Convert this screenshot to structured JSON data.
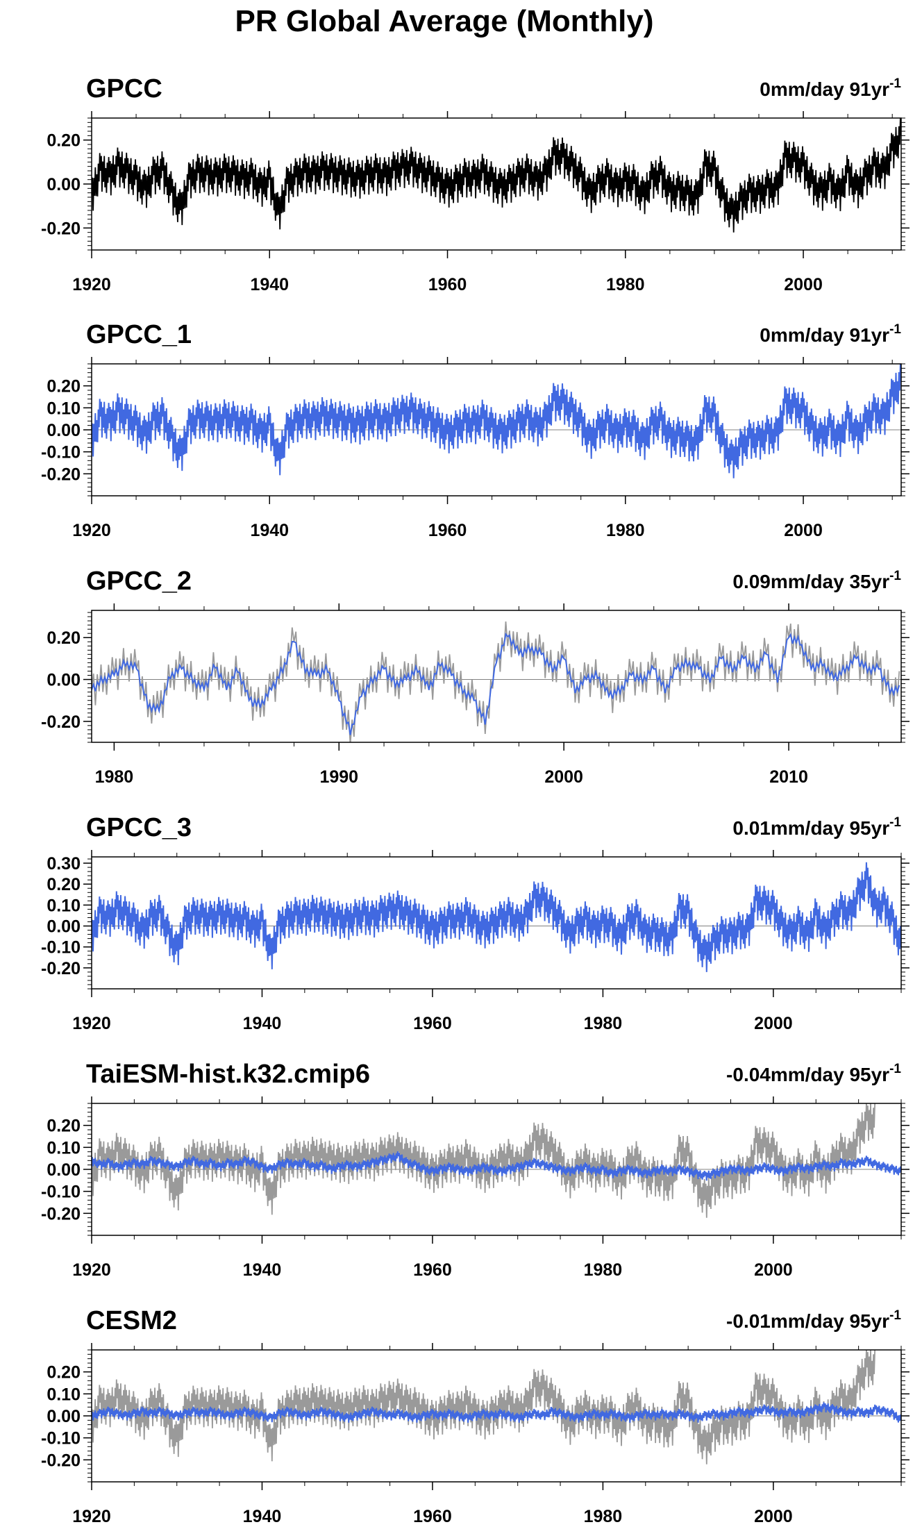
{
  "page": {
    "title": "PR Global Average (Monthly)"
  },
  "colors": {
    "observed": "#000000",
    "model": "#4169E1",
    "reference": "#9a9a9a",
    "zero_line": "#808080"
  },
  "chart_data": [
    {
      "type": "line",
      "title": "GPCC",
      "annotation": "0mm/day 91yr",
      "annotation_superscript": "-1",
      "xlim": [
        1920,
        2011
      ],
      "xticks": [
        1920,
        1940,
        1960,
        1980,
        2000
      ],
      "ylim": [
        -0.3,
        0.3
      ],
      "yticks": [
        -0.2,
        0.0,
        0.2
      ],
      "ytick_labels": [
        "-0.20",
        "0.00",
        "0.20"
      ],
      "show_zero_line": false,
      "series": [
        {
          "role": "observed",
          "color": "#000000",
          "step_years": 1,
          "x_start": 1920,
          "values": [
            -0.05,
            0.06,
            0.03,
            0.08,
            0.05,
            0.02,
            -0.03,
            0.04,
            0.06,
            -0.04,
            -0.12,
            0.02,
            0.05,
            0.04,
            0.03,
            0.05,
            0.04,
            0.02,
            0.03,
            -0.02,
            0.02,
            -0.14,
            0.0,
            0.03,
            0.05,
            0.04,
            0.06,
            0.05,
            0.04,
            0.03,
            0.02,
            0.04,
            0.05,
            0.03,
            0.06,
            0.07,
            0.08,
            0.05,
            0.04,
            0.01,
            -0.02,
            0.0,
            0.03,
            0.02,
            0.05,
            0.01,
            -0.02,
            0.0,
            0.03,
            0.05,
            0.01,
            0.04,
            0.13,
            0.12,
            0.08,
            0.03,
            -0.05,
            0.0,
            0.03,
            -0.02,
            0.01,
            0.0,
            -0.06,
            0.02,
            0.04,
            -0.04,
            -0.03,
            -0.05,
            -0.07,
            0.08,
            0.06,
            -0.07,
            -0.14,
            -0.08,
            -0.04,
            -0.05,
            -0.02,
            -0.03,
            0.12,
            0.1,
            0.08,
            0.0,
            -0.04,
            0.01,
            -0.05,
            0.05,
            -0.03,
            0.03,
            0.08,
            0.05,
            0.15,
            0.22
          ]
        }
      ]
    },
    {
      "type": "line",
      "title": "GPCC_1",
      "annotation": "0mm/day 91yr",
      "annotation_superscript": "-1",
      "xlim": [
        1920,
        2011
      ],
      "xticks": [
        1920,
        1940,
        1960,
        1980,
        2000
      ],
      "ylim": [
        -0.3,
        0.3
      ],
      "yticks": [
        -0.2,
        -0.1,
        0.0,
        0.1,
        0.2
      ],
      "ytick_labels": [
        "-0.20",
        "-0.10",
        "0.00",
        "0.10",
        "0.20"
      ],
      "show_zero_line": true,
      "series": [
        {
          "role": "model",
          "color": "#4169E1",
          "step_years": 1,
          "x_start": 1920,
          "values": [
            -0.05,
            0.06,
            0.03,
            0.08,
            0.05,
            0.02,
            -0.03,
            0.04,
            0.06,
            -0.04,
            -0.12,
            0.02,
            0.05,
            0.04,
            0.03,
            0.05,
            0.04,
            0.02,
            0.03,
            -0.02,
            0.02,
            -0.14,
            0.0,
            0.03,
            0.05,
            0.04,
            0.06,
            0.05,
            0.04,
            0.03,
            0.02,
            0.04,
            0.05,
            0.03,
            0.06,
            0.07,
            0.08,
            0.05,
            0.04,
            0.01,
            -0.02,
            0.0,
            0.03,
            0.02,
            0.05,
            0.01,
            -0.02,
            0.0,
            0.03,
            0.05,
            0.01,
            0.04,
            0.13,
            0.12,
            0.08,
            0.03,
            -0.05,
            0.0,
            0.03,
            -0.02,
            0.01,
            0.0,
            -0.06,
            0.02,
            0.04,
            -0.04,
            -0.03,
            -0.05,
            -0.07,
            0.08,
            0.06,
            -0.07,
            -0.14,
            -0.08,
            -0.04,
            -0.05,
            -0.02,
            -0.03,
            0.12,
            0.1,
            0.08,
            0.0,
            -0.04,
            0.01,
            -0.05,
            0.05,
            -0.03,
            0.03,
            0.08,
            0.05,
            0.15,
            0.22
          ]
        }
      ]
    },
    {
      "type": "line",
      "title": "GPCC_2",
      "annotation": "0.09mm/day 35yr",
      "annotation_superscript": "-1",
      "xlim": [
        1979,
        2015
      ],
      "xticks": [
        1980,
        1990,
        2000,
        2010
      ],
      "ylim": [
        -0.3,
        0.33
      ],
      "yticks": [
        -0.2,
        0.0,
        0.2
      ],
      "ytick_labels": [
        "-0.20",
        "0.00",
        "0.20"
      ],
      "show_zero_line": true,
      "series": [
        {
          "role": "reference",
          "color": "#9a9a9a",
          "step_years": 0.5,
          "x_start": 1979,
          "values": [
            -0.05,
            0.0,
            0.02,
            0.08,
            0.05,
            -0.12,
            -0.15,
            0.02,
            0.05,
            0.0,
            -0.05,
            0.07,
            -0.05,
            0.05,
            -0.1,
            -0.12,
            -0.05,
            0.05,
            0.18,
            0.05,
            0.02,
            0.05,
            -0.1,
            -0.25,
            -0.08,
            0.0,
            0.05,
            -0.02,
            0.0,
            0.05,
            -0.05,
            0.08,
            0.02,
            -0.05,
            -0.1,
            -0.2,
            0.08,
            0.22,
            0.12,
            0.15,
            0.12,
            0.05,
            0.1,
            -0.05,
            0.0,
            0.02,
            -0.08,
            -0.05,
            0.02,
            0.0,
            0.05,
            -0.05,
            0.05,
            0.08,
            0.05,
            0.0,
            0.1,
            0.05,
            0.1,
            0.05,
            0.12,
            0.0,
            0.2,
            0.18,
            0.05,
            0.08,
            0.0,
            0.05,
            0.1,
            0.05,
            0.05,
            -0.05
          ]
        },
        {
          "role": "model",
          "color": "#4169E1",
          "step_years": 0.5,
          "x_start": 1979,
          "values": [
            -0.05,
            0.0,
            0.02,
            0.08,
            0.05,
            -0.12,
            -0.15,
            0.02,
            0.05,
            0.0,
            -0.05,
            0.07,
            -0.05,
            0.05,
            -0.1,
            -0.12,
            -0.05,
            0.05,
            0.18,
            0.05,
            0.02,
            0.05,
            -0.1,
            -0.25,
            -0.08,
            0.0,
            0.05,
            -0.02,
            0.0,
            0.05,
            -0.05,
            0.08,
            0.02,
            -0.05,
            -0.1,
            -0.2,
            0.08,
            0.22,
            0.12,
            0.15,
            0.12,
            0.05,
            0.1,
            -0.05,
            0.0,
            0.02,
            -0.08,
            -0.05,
            0.02,
            0.0,
            0.05,
            -0.05,
            0.05,
            0.08,
            0.05,
            0.0,
            0.1,
            0.05,
            0.1,
            0.05,
            0.12,
            0.0,
            0.2,
            0.18,
            0.05,
            0.08,
            0.0,
            0.05,
            0.1,
            0.05,
            0.05,
            -0.05
          ]
        }
      ]
    },
    {
      "type": "line",
      "title": "GPCC_3",
      "annotation": "0.01mm/day 95yr",
      "annotation_superscript": "-1",
      "xlim": [
        1920,
        2015
      ],
      "xticks": [
        1920,
        1940,
        1960,
        1980,
        2000
      ],
      "ylim": [
        -0.3,
        0.33
      ],
      "yticks": [
        -0.2,
        -0.1,
        0.0,
        0.1,
        0.2,
        0.3
      ],
      "ytick_labels": [
        "-0.20",
        "-0.10",
        "0.00",
        "0.10",
        "0.20",
        "0.30"
      ],
      "show_zero_line": true,
      "series": [
        {
          "role": "model",
          "color": "#4169E1",
          "step_years": 1,
          "x_start": 1920,
          "values": [
            -0.05,
            0.06,
            0.03,
            0.08,
            0.05,
            0.02,
            -0.03,
            0.04,
            0.06,
            -0.04,
            -0.12,
            0.02,
            0.05,
            0.04,
            0.03,
            0.05,
            0.04,
            0.02,
            0.03,
            -0.02,
            0.02,
            -0.14,
            0.0,
            0.03,
            0.05,
            0.04,
            0.06,
            0.05,
            0.04,
            0.03,
            0.02,
            0.04,
            0.05,
            0.03,
            0.06,
            0.07,
            0.08,
            0.05,
            0.04,
            0.01,
            -0.02,
            0.0,
            0.03,
            0.02,
            0.05,
            0.01,
            -0.02,
            0.0,
            0.03,
            0.05,
            0.01,
            0.04,
            0.13,
            0.12,
            0.08,
            0.03,
            -0.05,
            0.0,
            0.03,
            -0.02,
            0.01,
            0.0,
            -0.06,
            0.02,
            0.04,
            -0.04,
            -0.03,
            -0.05,
            -0.07,
            0.08,
            0.06,
            -0.07,
            -0.14,
            -0.08,
            -0.04,
            -0.05,
            -0.02,
            -0.03,
            0.12,
            0.1,
            0.08,
            0.0,
            -0.04,
            0.01,
            -0.05,
            0.05,
            -0.03,
            0.03,
            0.08,
            0.05,
            0.15,
            0.22,
            0.08,
            0.1,
            0.02,
            -0.1
          ]
        }
      ]
    },
    {
      "type": "line",
      "title": "TaiESM-hist.k32.cmip6",
      "annotation": "-0.04mm/day 95yr",
      "annotation_superscript": "-1",
      "xlim": [
        1920,
        2015
      ],
      "xticks": [
        1920,
        1940,
        1960,
        1980,
        2000
      ],
      "ylim": [
        -0.3,
        0.3
      ],
      "yticks": [
        -0.2,
        -0.1,
        0.0,
        0.1,
        0.2
      ],
      "ytick_labels": [
        "-0.20",
        "-0.10",
        "0.00",
        "0.10",
        "0.20"
      ],
      "show_zero_line": true,
      "series": [
        {
          "role": "reference",
          "color": "#9a9a9a",
          "step_years": 1,
          "x_start": 1920,
          "values": [
            -0.05,
            0.06,
            0.03,
            0.08,
            0.05,
            0.02,
            -0.03,
            0.04,
            0.06,
            -0.04,
            -0.12,
            0.02,
            0.05,
            0.04,
            0.03,
            0.05,
            0.04,
            0.02,
            0.03,
            -0.02,
            0.02,
            -0.14,
            0.0,
            0.03,
            0.05,
            0.04,
            0.06,
            0.05,
            0.04,
            0.03,
            0.02,
            0.04,
            0.05,
            0.03,
            0.06,
            0.07,
            0.08,
            0.05,
            0.04,
            0.01,
            -0.02,
            0.0,
            0.03,
            0.02,
            0.05,
            0.01,
            -0.02,
            0.0,
            0.03,
            0.05,
            0.01,
            0.04,
            0.13,
            0.12,
            0.08,
            0.03,
            -0.05,
            0.0,
            0.03,
            -0.02,
            0.01,
            0.0,
            -0.06,
            0.02,
            0.04,
            -0.04,
            -0.03,
            -0.05,
            -0.07,
            0.08,
            0.06,
            -0.07,
            -0.14,
            -0.08,
            -0.04,
            -0.05,
            -0.02,
            -0.03,
            0.12,
            0.1,
            0.08,
            0.0,
            -0.04,
            0.01,
            -0.05,
            0.05,
            -0.03,
            0.03,
            0.08,
            0.05,
            0.15,
            0.22
          ]
        },
        {
          "role": "model",
          "color": "#4169E1",
          "step_years": 1,
          "x_start": 1920,
          "values": [
            0.04,
            0.02,
            0.03,
            0.01,
            0.02,
            0.03,
            0.02,
            0.04,
            0.03,
            0.02,
            0.01,
            0.03,
            0.04,
            0.02,
            0.03,
            0.01,
            0.03,
            0.02,
            0.04,
            0.03,
            0.01,
            0.0,
            0.02,
            0.03,
            0.02,
            0.03,
            0.01,
            0.02,
            0.0,
            0.01,
            0.02,
            0.01,
            0.02,
            0.03,
            0.04,
            0.05,
            0.06,
            0.03,
            0.02,
            0.0,
            -0.01,
            0.0,
            0.01,
            0.0,
            -0.01,
            0.0,
            0.01,
            0.0,
            -0.01,
            0.0,
            0.01,
            0.02,
            0.03,
            0.02,
            0.01,
            0.0,
            -0.01,
            0.0,
            0.01,
            -0.01,
            0.0,
            -0.02,
            -0.01,
            0.0,
            -0.01,
            -0.02,
            -0.01,
            0.0,
            -0.01,
            0.0,
            -0.01,
            -0.02,
            -0.03,
            -0.02,
            -0.01,
            0.0,
            0.0,
            -0.01,
            0.0,
            0.01,
            0.0,
            -0.01,
            0.0,
            0.01,
            0.0,
            0.01,
            0.02,
            0.01,
            0.03,
            0.02,
            0.03,
            0.04,
            0.02,
            0.01,
            0.0,
            -0.01
          ]
        }
      ]
    },
    {
      "type": "line",
      "title": "CESM2",
      "annotation": "-0.01mm/day 95yr",
      "annotation_superscript": "-1",
      "xlim": [
        1920,
        2015
      ],
      "xticks": [
        1920,
        1940,
        1960,
        1980,
        2000
      ],
      "ylim": [
        -0.3,
        0.3
      ],
      "yticks": [
        -0.2,
        -0.1,
        0.0,
        0.1,
        0.2
      ],
      "ytick_labels": [
        "-0.20",
        "-0.10",
        "0.00",
        "0.10",
        "0.20"
      ],
      "show_zero_line": true,
      "series": [
        {
          "role": "reference",
          "color": "#9a9a9a",
          "step_years": 1,
          "x_start": 1920,
          "values": [
            -0.05,
            0.06,
            0.03,
            0.08,
            0.05,
            0.02,
            -0.03,
            0.04,
            0.06,
            -0.04,
            -0.12,
            0.02,
            0.05,
            0.04,
            0.03,
            0.05,
            0.04,
            0.02,
            0.03,
            -0.02,
            0.02,
            -0.14,
            0.0,
            0.03,
            0.05,
            0.04,
            0.06,
            0.05,
            0.04,
            0.03,
            0.02,
            0.04,
            0.05,
            0.03,
            0.06,
            0.07,
            0.08,
            0.05,
            0.04,
            0.01,
            -0.02,
            0.0,
            0.03,
            0.02,
            0.05,
            0.01,
            -0.02,
            0.0,
            0.03,
            0.05,
            0.01,
            0.04,
            0.13,
            0.12,
            0.08,
            0.03,
            -0.05,
            0.0,
            0.03,
            -0.02,
            0.01,
            0.0,
            -0.06,
            0.02,
            0.04,
            -0.04,
            -0.03,
            -0.05,
            -0.07,
            0.08,
            0.06,
            -0.07,
            -0.14,
            -0.08,
            -0.04,
            -0.05,
            -0.02,
            -0.03,
            0.12,
            0.1,
            0.08,
            0.0,
            -0.04,
            0.01,
            -0.05,
            0.05,
            -0.03,
            0.03,
            0.08,
            0.05,
            0.15,
            0.22
          ]
        },
        {
          "role": "model",
          "color": "#4169E1",
          "step_years": 1,
          "x_start": 1920,
          "values": [
            0.0,
            0.01,
            0.02,
            0.01,
            0.0,
            0.01,
            0.02,
            0.01,
            0.02,
            0.01,
            0.0,
            0.01,
            0.02,
            0.01,
            0.02,
            0.01,
            0.0,
            0.01,
            0.02,
            0.01,
            0.0,
            -0.01,
            0.01,
            0.02,
            0.01,
            0.0,
            0.01,
            0.02,
            0.01,
            0.0,
            -0.01,
            0.0,
            0.01,
            0.02,
            0.01,
            0.0,
            0.01,
            0.0,
            -0.01,
            0.0,
            0.01,
            0.0,
            0.01,
            0.0,
            -0.01,
            0.0,
            0.01,
            0.0,
            0.01,
            0.0,
            -0.01,
            0.0,
            0.01,
            0.0,
            0.02,
            0.01,
            0.0,
            -0.01,
            0.0,
            0.01,
            0.0,
            0.01,
            0.0,
            -0.01,
            0.0,
            0.01,
            0.0,
            0.01,
            0.0,
            0.01,
            0.0,
            -0.01,
            0.0,
            0.01,
            0.0,
            0.01,
            0.02,
            0.01,
            0.02,
            0.03,
            0.02,
            0.01,
            0.02,
            0.01,
            0.02,
            0.03,
            0.04,
            0.03,
            0.02,
            0.01,
            0.02,
            0.01,
            0.03,
            0.02,
            0.01,
            -0.02
          ]
        }
      ]
    }
  ]
}
